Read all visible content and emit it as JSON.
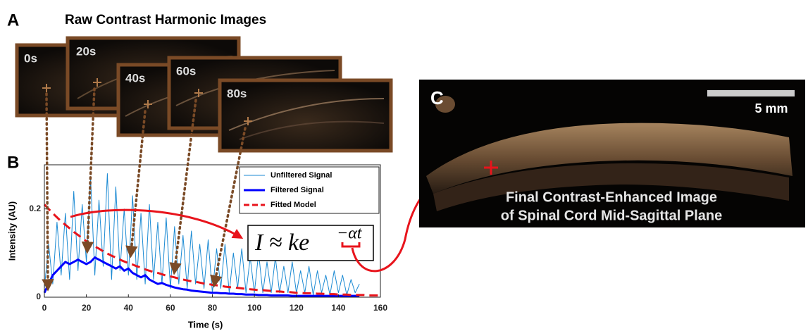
{
  "panels": {
    "a": {
      "label": "A",
      "title": "Raw Contrast Harmonic Images",
      "frames": [
        "0s",
        "20s",
        "40s",
        "60s",
        "80s"
      ]
    },
    "b": {
      "label": "B",
      "equation": {
        "base": "I ≈ ke",
        "exponent": "−αt"
      }
    },
    "c": {
      "label": "C",
      "scale_bar": "5 mm",
      "caption": [
        "Final Contrast-Enhanced Image",
        "of Spinal Cord Mid-Sagittal Plane"
      ]
    }
  },
  "chart_data": {
    "type": "line",
    "x_label": "Time (s)",
    "y_label": "Intensity (AU)",
    "xlim": [
      0,
      160
    ],
    "xticks": [
      0,
      20,
      40,
      60,
      80,
      100,
      120,
      140,
      160
    ],
    "ylim": [
      0,
      0.3
    ],
    "yticks": [
      0,
      0.2
    ],
    "legend": "upper right",
    "x": [
      0,
      2,
      4,
      6,
      8,
      10,
      12,
      14,
      16,
      18,
      20,
      22,
      24,
      26,
      28,
      30,
      32,
      34,
      36,
      38,
      40,
      42,
      44,
      46,
      48,
      50,
      52,
      54,
      56,
      58,
      60,
      62,
      64,
      66,
      68,
      70,
      72,
      74,
      76,
      78,
      80,
      82,
      84,
      86,
      88,
      90,
      92,
      94,
      96,
      98,
      100,
      102,
      104,
      106,
      108,
      110,
      112,
      114,
      116,
      118,
      120,
      122,
      124,
      126,
      128,
      130,
      132,
      134,
      136,
      138,
      140,
      142,
      144,
      146,
      148,
      150,
      152,
      154,
      156,
      158,
      160
    ],
    "series": [
      {
        "name": "Unfiltered Signal",
        "color": "#1b8ad3",
        "width": 1,
        "dashed": false,
        "values": [
          0.02,
          0.12,
          0.03,
          0.17,
          0.05,
          0.19,
          0.04,
          0.24,
          0.06,
          0.21,
          0.08,
          0.27,
          0.05,
          0.22,
          0.07,
          0.28,
          0.04,
          0.25,
          0.06,
          0.2,
          0.05,
          0.23,
          0.04,
          0.19,
          0.03,
          0.21,
          0.04,
          0.17,
          0.03,
          0.18,
          0.02,
          0.16,
          0.03,
          0.14,
          0.02,
          0.15,
          0.03,
          0.12,
          0.02,
          0.13,
          0.01,
          0.11,
          0.02,
          0.12,
          0.01,
          0.1,
          0.02,
          0.11,
          0.01,
          0.09,
          0.01,
          0.1,
          0.01,
          0.08,
          0.01,
          0.09,
          0.01,
          0.07,
          0.01,
          0.08,
          0.01,
          0.06,
          0.01,
          0.07,
          0.005,
          0.06,
          0.01,
          0.05,
          0.005,
          0.06,
          0.01,
          0.05,
          0.005,
          0.04,
          0.01,
          0.03,
          null,
          null,
          null,
          null,
          null
        ]
      },
      {
        "name": "Filtered Signal",
        "color": "#0000ff",
        "width": 3,
        "dashed": false,
        "values": [
          0.01,
          0.03,
          0.05,
          0.06,
          0.07,
          0.08,
          0.075,
          0.08,
          0.085,
          0.08,
          0.075,
          0.08,
          0.09,
          0.085,
          0.08,
          0.075,
          0.07,
          0.065,
          0.07,
          0.06,
          0.065,
          0.055,
          0.05,
          0.045,
          0.05,
          0.04,
          0.035,
          0.03,
          0.032,
          0.028,
          0.025,
          0.022,
          0.02,
          0.018,
          0.017,
          0.015,
          0.014,
          0.013,
          0.012,
          0.011,
          0.01,
          0.01,
          0.009,
          0.009,
          0.008,
          0.008,
          0.007,
          0.007,
          0.006,
          0.006,
          0.006,
          0.005,
          0.005,
          0.005,
          0.004,
          0.004,
          0.004,
          0.004,
          0.004,
          0.003,
          0.003,
          0.003,
          0.003,
          0.003,
          0.003,
          0.003,
          0.003,
          0.003,
          0.003,
          0.003,
          0.003,
          0.003,
          0.003,
          0.003,
          0.003,
          0.003,
          null,
          null,
          null,
          null,
          null
        ]
      },
      {
        "name": "Fitted Model",
        "color": "#e8141c",
        "width": 3,
        "dashed": true,
        "values": [
          0.21,
          0.2,
          0.19,
          0.181,
          0.172,
          0.164,
          0.156,
          0.148,
          0.141,
          0.134,
          0.127,
          0.121,
          0.115,
          0.11,
          0.104,
          0.099,
          0.094,
          0.09,
          0.085,
          0.081,
          0.077,
          0.074,
          0.07,
          0.067,
          0.063,
          0.06,
          0.057,
          0.055,
          0.052,
          0.049,
          0.047,
          0.045,
          0.042,
          0.04,
          0.038,
          0.036,
          0.035,
          0.033,
          0.031,
          0.03,
          0.028,
          0.027,
          0.026,
          0.024,
          0.023,
          0.022,
          0.021,
          0.02,
          0.019,
          0.018,
          0.017,
          0.016,
          0.016,
          0.015,
          0.014,
          0.013,
          0.013,
          0.012,
          0.012,
          0.011,
          0.01,
          0.01,
          0.009,
          0.009,
          0.009,
          0.008,
          0.008,
          0.007,
          0.007,
          0.007,
          0.006,
          0.006,
          0.006,
          0.005,
          0.005,
          0.005,
          0.005,
          0.004,
          0.004,
          0.004,
          0.004
        ]
      }
    ]
  }
}
